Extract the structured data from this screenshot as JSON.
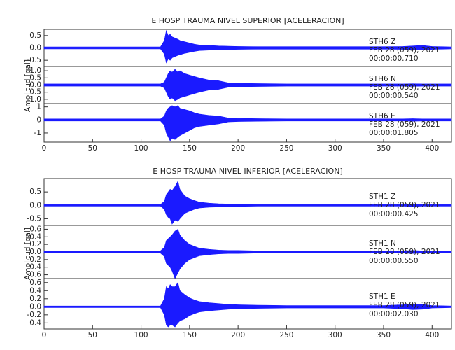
{
  "chart_data": [
    {
      "type": "seismogram",
      "title": "E HOSP TRAUMA NIVEL SUPERIOR [ACELERACION]",
      "ylabel": "Amplitud [gal]",
      "xlim": [
        0,
        420
      ],
      "xticks": [
        0,
        50,
        100,
        150,
        200,
        250,
        300,
        350,
        400
      ],
      "x": [
        0,
        120,
        124,
        126,
        128,
        130,
        132,
        135,
        138,
        140,
        145,
        150,
        155,
        160,
        170,
        180,
        190,
        200,
        220,
        250,
        300,
        350,
        370,
        380,
        390,
        400,
        420
      ],
      "panels": [
        {
          "ylim": [
            -0.75,
            0.75
          ],
          "yticks": [
            -0.5,
            {
              "value": 0,
              "label": "0.0"
            },
            0.5
          ],
          "color": "#1a1aff",
          "station": "STH6   Z",
          "date": "FEB 28 (059), 2021",
          "time": "00:00:00.710",
          "upper": [
            0.04,
            0.04,
            0.3,
            0.7,
            0.5,
            0.55,
            0.45,
            0.4,
            0.35,
            0.3,
            0.25,
            0.2,
            0.15,
            0.12,
            0.1,
            0.08,
            0.07,
            0.06,
            0.05,
            0.05,
            0.05,
            0.05,
            0.06,
            0.08,
            0.1,
            0.06,
            0.04
          ],
          "lower": [
            -0.04,
            -0.04,
            -0.25,
            -0.6,
            -0.45,
            -0.5,
            -0.4,
            -0.35,
            -0.3,
            -0.28,
            -0.22,
            -0.18,
            -0.14,
            -0.11,
            -0.09,
            -0.08,
            -0.07,
            -0.06,
            -0.05,
            -0.05,
            -0.05,
            -0.05,
            -0.06,
            -0.08,
            -0.09,
            -0.06,
            -0.04
          ]
        },
        {
          "ylim": [
            -1.3,
            1.3
          ],
          "yticks": [
            {
              "value": -1,
              "label": "-1.0"
            },
            -0.5,
            {
              "value": 0,
              "label": "0.0"
            },
            0.5,
            {
              "value": 1,
              "label": "1.0"
            }
          ],
          "color": "#1a1aff",
          "station": "STH6   N",
          "date": "FEB 28 (059), 2021",
          "time": "00:00:00.540",
          "upper": [
            0.08,
            0.08,
            0.2,
            0.5,
            0.8,
            1.0,
            0.9,
            1.1,
            0.9,
            1.0,
            0.8,
            0.7,
            0.6,
            0.5,
            0.35,
            0.3,
            0.15,
            0.12,
            0.1,
            0.08,
            0.08,
            0.08,
            0.08,
            0.09,
            0.08,
            0.08,
            0.08
          ],
          "lower": [
            -0.08,
            -0.08,
            -0.2,
            -0.5,
            -0.8,
            -1.0,
            -0.9,
            -1.1,
            -1.0,
            -0.9,
            -0.8,
            -0.7,
            -0.6,
            -0.5,
            -0.35,
            -0.3,
            -0.15,
            -0.12,
            -0.1,
            -0.08,
            -0.08,
            -0.08,
            -0.08,
            -0.09,
            -0.08,
            -0.08,
            -0.08
          ]
        },
        {
          "ylim": [
            -1.7,
            1.25
          ],
          "yticks": [
            -1,
            0,
            1
          ],
          "color": "#1a1aff",
          "station": "STH6   E",
          "date": "FEB 28 (059), 2021",
          "time": "00:00:01.805",
          "upper": [
            0.08,
            0.08,
            0.3,
            0.7,
            0.9,
            1.0,
            1.1,
            1.0,
            1.1,
            0.9,
            0.8,
            0.7,
            0.55,
            0.45,
            0.35,
            0.3,
            0.15,
            0.12,
            0.1,
            0.08,
            0.08,
            0.08,
            0.08,
            0.1,
            0.08,
            0.08,
            0.08
          ],
          "lower": [
            -0.08,
            -0.08,
            -0.4,
            -1.0,
            -1.3,
            -1.6,
            -1.4,
            -1.5,
            -1.3,
            -1.2,
            -1.0,
            -0.8,
            -0.6,
            -0.5,
            -0.4,
            -0.3,
            -0.15,
            -0.12,
            -0.1,
            -0.08,
            -0.08,
            -0.08,
            -0.08,
            -0.1,
            -0.08,
            -0.08,
            -0.08
          ]
        }
      ]
    },
    {
      "type": "seismogram",
      "title": "E HOSP TRAUMA NIVEL INFERIOR [ACELERACION]",
      "ylabel": "Amplitud [gal]",
      "xlim": [
        0,
        420
      ],
      "xticks": [
        0,
        50,
        100,
        150,
        200,
        250,
        300,
        350,
        400
      ],
      "x": [
        0,
        120,
        124,
        126,
        128,
        130,
        132,
        135,
        138,
        140,
        145,
        150,
        155,
        160,
        170,
        180,
        190,
        200,
        220,
        250,
        300,
        350,
        370,
        380,
        390,
        400,
        420
      ],
      "panels": [
        {
          "ylim": [
            -0.75,
            1.0
          ],
          "yticks": [
            -0.5,
            {
              "value": 0,
              "label": "0.0"
            },
            0.5
          ],
          "color": "#1a1aff",
          "station": "STH1   Z",
          "date": "FEB 28 (059), 2021",
          "time": "00:00:00.425",
          "upper": [
            0.03,
            0.03,
            0.15,
            0.4,
            0.5,
            0.6,
            0.55,
            0.7,
            0.9,
            0.6,
            0.35,
            0.25,
            0.18,
            0.12,
            0.08,
            0.06,
            0.05,
            0.04,
            0.03,
            0.03,
            0.03,
            0.03,
            0.03,
            0.04,
            0.03,
            0.03,
            0.03
          ],
          "lower": [
            -0.03,
            -0.03,
            -0.15,
            -0.35,
            -0.45,
            -0.5,
            -0.7,
            -0.55,
            -0.6,
            -0.5,
            -0.3,
            -0.22,
            -0.15,
            -0.1,
            -0.07,
            -0.06,
            -0.05,
            -0.04,
            -0.03,
            -0.03,
            -0.03,
            -0.03,
            -0.03,
            -0.04,
            -0.03,
            -0.03,
            -0.03
          ]
        },
        {
          "ylim": [
            -0.7,
            0.7
          ],
          "yticks": [
            -0.6,
            -0.4,
            -0.2,
            {
              "value": 0,
              "label": "0.0"
            },
            0.2,
            0.4,
            0.6
          ],
          "color": "#1a1aff",
          "station": "STH1   N",
          "date": "FEB 28 (059), 2021",
          "time": "00:00:00.550",
          "upper": [
            0.03,
            0.03,
            0.12,
            0.3,
            0.35,
            0.4,
            0.45,
            0.55,
            0.6,
            0.45,
            0.3,
            0.2,
            0.15,
            0.1,
            0.07,
            0.05,
            0.04,
            0.04,
            0.03,
            0.03,
            0.03,
            0.03,
            0.03,
            0.04,
            0.03,
            0.03,
            0.03
          ],
          "lower": [
            -0.03,
            -0.03,
            -0.12,
            -0.3,
            -0.35,
            -0.4,
            -0.5,
            -0.7,
            -0.55,
            -0.45,
            -0.3,
            -0.2,
            -0.15,
            -0.1,
            -0.07,
            -0.05,
            -0.04,
            -0.04,
            -0.03,
            -0.03,
            -0.03,
            -0.03,
            -0.03,
            -0.04,
            -0.03,
            -0.03,
            -0.03
          ]
        },
        {
          "ylim": [
            -0.55,
            0.7
          ],
          "yticks": [
            -0.4,
            -0.2,
            {
              "value": 0,
              "label": "0.0"
            },
            0.2,
            0.4,
            0.6
          ],
          "color": "#1a1aff",
          "station": "STH1   E",
          "date": "FEB 28 (059), 2021",
          "time": "00:00:02.030",
          "upper": [
            0.02,
            0.02,
            0.2,
            0.5,
            0.45,
            0.55,
            0.5,
            0.5,
            0.6,
            0.4,
            0.3,
            0.22,
            0.17,
            0.13,
            0.1,
            0.08,
            0.06,
            0.05,
            0.04,
            0.03,
            0.03,
            0.03,
            0.05,
            0.07,
            0.06,
            0.03,
            0.02
          ],
          "lower": [
            -0.02,
            -0.02,
            -0.2,
            -0.45,
            -0.5,
            -0.45,
            -0.45,
            -0.5,
            -0.4,
            -0.35,
            -0.3,
            -0.22,
            -0.17,
            -0.13,
            -0.1,
            -0.08,
            -0.06,
            -0.05,
            -0.04,
            -0.03,
            -0.03,
            -0.03,
            -0.05,
            -0.07,
            -0.06,
            -0.03,
            -0.02
          ]
        }
      ]
    }
  ]
}
